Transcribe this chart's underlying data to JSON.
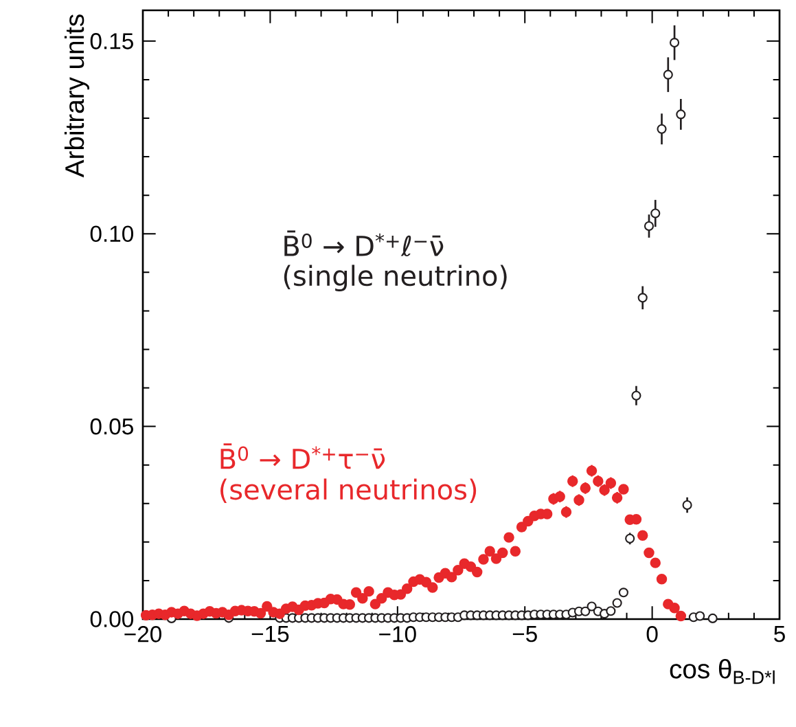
{
  "chart_data": {
    "type": "scatter",
    "xlabel": "cos θ$_{B-D*l}$",
    "ylabel": "Arbitrary units",
    "xlim": [
      -20,
      5
    ],
    "ylim": [
      0,
      0.158
    ],
    "xticks": [
      {
        "value": -20,
        "label": "−20"
      },
      {
        "value": -15,
        "label": "−15"
      },
      {
        "value": -10,
        "label": "−10"
      },
      {
        "value": -5,
        "label": "−5"
      },
      0,
      5
    ],
    "yticks": [
      {
        "value": 0,
        "label": "0.00"
      },
      {
        "value": 0.05,
        "label": "0.05"
      },
      {
        "value": 0.1,
        "label": "0.10"
      },
      {
        "value": 0.15,
        "label": "0.15"
      }
    ],
    "grid": false,
    "annotations": [
      "B̄$^{0}$ → D$^{*+}$ℓ$^{−}$ν̄",
      "(single neutrino)",
      "B̄$^{0}$ → D$^{*+}$τ$^{−}$ν̄",
      "(several neutrinos)"
    ],
    "series": [
      {
        "color": "#231f20",
        "marker": "circle",
        "x": [
          -18.875,
          -16.625,
          -14.625,
          -14.375,
          -14.125,
          -13.875,
          -13.625,
          -13.375,
          -13.125,
          -12.875,
          -12.625,
          -12.375,
          -12.125,
          -11.875,
          -11.625,
          -11.375,
          -11.125,
          -10.875,
          -10.625,
          -10.375,
          -10.125,
          -9.875,
          -9.625,
          -9.375,
          -9.125,
          -8.875,
          -8.625,
          -8.375,
          -8.125,
          -7.875,
          -7.625,
          -7.375,
          -7.125,
          -6.875,
          -6.625,
          -6.375,
          -6.125,
          -5.875,
          -5.625,
          -5.375,
          -5.125,
          -4.875,
          -4.625,
          -4.375,
          -4.125,
          -3.875,
          -3.625,
          -3.375,
          -3.125,
          -2.875,
          -2.625,
          -2.375,
          -2.125,
          -1.875,
          -1.625,
          -1.375,
          -1.125,
          -0.875,
          -0.625,
          -0.375,
          -0.125,
          0.125,
          0.375,
          0.625,
          0.875,
          1.125,
          1.375,
          1.625,
          1.875,
          2.375
        ],
        "values": [
          0.0002,
          0.0003,
          0.0003,
          0.0003,
          0.0003,
          0.0003,
          0.0003,
          0.0003,
          0.0003,
          0.0003,
          0.0003,
          0.0003,
          0.0003,
          0.0003,
          0.0003,
          0.0003,
          0.0003,
          0.0003,
          0.0003,
          0.0003,
          0.0003,
          0.0003,
          0.0003,
          0.0005,
          0.0005,
          0.0005,
          0.0005,
          0.0005,
          0.0005,
          0.0005,
          0.0005,
          0.001,
          0.001,
          0.001,
          0.001,
          0.001,
          0.001,
          0.001,
          0.001,
          0.001,
          0.001,
          0.001,
          0.0012,
          0.0012,
          0.0012,
          0.0012,
          0.0012,
          0.0012,
          0.0017,
          0.002,
          0.002,
          0.0033,
          0.002,
          0.0014,
          0.0021,
          0.0042,
          0.0069,
          0.0209,
          0.058,
          0.0834,
          0.102,
          0.1053,
          0.1272,
          0.1413,
          0.1496,
          0.131,
          0.0296,
          0.0005,
          0.0008,
          0.0002
        ],
        "errors": [
          null,
          null,
          null,
          null,
          null,
          null,
          null,
          null,
          null,
          null,
          null,
          null,
          null,
          null,
          null,
          null,
          null,
          null,
          null,
          null,
          null,
          null,
          null,
          null,
          null,
          null,
          null,
          null,
          null,
          null,
          null,
          null,
          null,
          null,
          null,
          null,
          null,
          null,
          null,
          null,
          null,
          null,
          null,
          null,
          null,
          null,
          null,
          null,
          null,
          null,
          null,
          null,
          null,
          null,
          null,
          null,
          null,
          0.0015,
          0.0025,
          0.003,
          0.003,
          0.0035,
          0.004,
          0.0045,
          0.0045,
          0.004,
          0.002,
          null,
          null,
          null
        ]
      },
      {
        "color": "#e8282b",
        "marker": "circle",
        "x": [
          -19.875,
          -19.625,
          -19.375,
          -19.125,
          -18.875,
          -18.625,
          -18.375,
          -18.125,
          -17.875,
          -17.625,
          -17.375,
          -17.125,
          -16.875,
          -16.625,
          -16.375,
          -16.125,
          -15.875,
          -15.625,
          -15.375,
          -15.125,
          -14.875,
          -14.625,
          -14.375,
          -14.125,
          -13.875,
          -13.625,
          -13.375,
          -13.125,
          -12.875,
          -12.625,
          -12.375,
          -12.125,
          -11.875,
          -11.625,
          -11.375,
          -11.125,
          -10.875,
          -10.625,
          -10.375,
          -10.125,
          -9.875,
          -9.625,
          -9.375,
          -9.125,
          -8.875,
          -8.625,
          -8.375,
          -8.125,
          -7.875,
          -7.625,
          -7.375,
          -7.125,
          -6.875,
          -6.625,
          -6.375,
          -6.125,
          -5.875,
          -5.625,
          -5.375,
          -5.125,
          -4.875,
          -4.625,
          -4.375,
          -4.125,
          -3.875,
          -3.625,
          -3.375,
          -3.125,
          -2.875,
          -2.625,
          -2.375,
          -2.125,
          -1.875,
          -1.625,
          -1.375,
          -1.125,
          -0.875,
          -0.625,
          -0.375,
          -0.125,
          0.125,
          0.375,
          0.625,
          0.875,
          1.125
        ],
        "values": [
          0.001,
          0.0011,
          0.0014,
          0.0011,
          0.0018,
          0.0014,
          0.0021,
          0.0014,
          0.0009,
          0.0014,
          0.002,
          0.0015,
          0.0018,
          0.0011,
          0.0021,
          0.0023,
          0.0021,
          0.002,
          0.0015,
          0.0033,
          0.0018,
          0.0014,
          0.0027,
          0.0032,
          0.0024,
          0.0035,
          0.0036,
          0.0041,
          0.0042,
          0.0052,
          0.0051,
          0.0039,
          0.0038,
          0.0069,
          0.0054,
          0.0072,
          0.0039,
          0.0054,
          0.0069,
          0.0063,
          0.0064,
          0.0079,
          0.0097,
          0.0103,
          0.0096,
          0.0082,
          0.0108,
          0.0119,
          0.0109,
          0.0127,
          0.0144,
          0.0136,
          0.0122,
          0.0155,
          0.0176,
          0.0157,
          0.0172,
          0.0212,
          0.0176,
          0.0239,
          0.0254,
          0.0268,
          0.0273,
          0.0273,
          0.0312,
          0.0318,
          0.0278,
          0.0358,
          0.0309,
          0.034,
          0.0385,
          0.0358,
          0.0335,
          0.0353,
          0.0315,
          0.0337,
          0.0258,
          0.0259,
          0.0217,
          0.0172,
          0.0146,
          0.0104,
          0.0039,
          0.0029,
          0.0008
        ],
        "errors": [
          null,
          null,
          null,
          null,
          null,
          null,
          null,
          null,
          null,
          null,
          null,
          null,
          null,
          null,
          null,
          null,
          null,
          null,
          null,
          null,
          null,
          null,
          null,
          null,
          null,
          null,
          null,
          null,
          null,
          null,
          null,
          null,
          null,
          null,
          null,
          null,
          null,
          null,
          null,
          null,
          null,
          null,
          null,
          null,
          null,
          null,
          0.0008,
          0.0008,
          0.0008,
          0.0008,
          0.0008,
          0.0008,
          0.0008,
          0.001,
          0.001,
          0.001,
          0.001,
          0.0012,
          0.0012,
          0.0012,
          0.0012,
          0.0012,
          0.0012,
          0.0012,
          0.0015,
          0.0015,
          0.0015,
          0.0015,
          0.0015,
          0.0015,
          0.0015,
          0.0015,
          0.0015,
          0.0015,
          0.0015,
          0.0012,
          0.0012,
          0.0012,
          0.001,
          0.001,
          0.0008,
          0.0008,
          null,
          null,
          null
        ]
      }
    ]
  }
}
